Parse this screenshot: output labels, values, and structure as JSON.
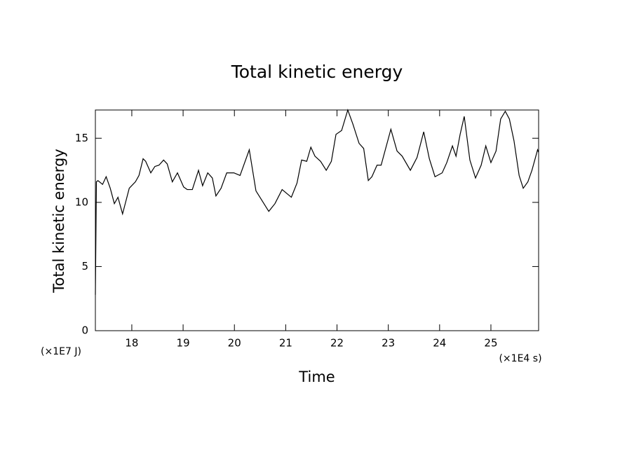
{
  "chart_data": {
    "type": "line",
    "title": "Total kinetic energy",
    "x_label": "Time",
    "y_label": "Total kinetic energy",
    "x_unit": "(×1E4 s)",
    "y_unit": "(×1E7 J)",
    "xlim": [
      17.29,
      25.93
    ],
    "ylim": [
      0,
      17.2
    ],
    "xticks": [
      18,
      19,
      20,
      21,
      22,
      23,
      24,
      25
    ],
    "yticks": [
      0,
      5,
      10,
      15
    ],
    "series": [
      {
        "name": "Total kinetic energy",
        "color": "#000000",
        "x": [
          17.29,
          17.31,
          17.34,
          17.43,
          17.5,
          17.58,
          17.66,
          17.73,
          17.82,
          17.95,
          18.07,
          18.14,
          18.22,
          18.27,
          18.37,
          18.45,
          18.53,
          18.62,
          18.69,
          18.79,
          18.89,
          19.01,
          19.08,
          19.18,
          19.3,
          19.38,
          19.48,
          19.57,
          19.64,
          19.74,
          19.85,
          19.99,
          20.11,
          20.29,
          20.42,
          20.56,
          20.67,
          20.79,
          20.93,
          21.11,
          21.22,
          21.31,
          21.41,
          21.49,
          21.57,
          21.68,
          21.79,
          21.89,
          21.98,
          22.09,
          22.21,
          22.31,
          22.43,
          22.52,
          22.61,
          22.68,
          22.78,
          22.86,
          23.05,
          23.17,
          23.27,
          23.43,
          23.56,
          23.69,
          23.8,
          23.91,
          24.05,
          24.14,
          24.25,
          24.32,
          24.4,
          24.48,
          24.59,
          24.7,
          24.81,
          24.9,
          25.0,
          25.1,
          25.19,
          25.28,
          25.36,
          25.45,
          25.55,
          25.63,
          25.72,
          25.8,
          25.91,
          25.93
        ],
        "values": [
          2.8,
          11.6,
          11.7,
          11.4,
          12.0,
          11.1,
          9.9,
          10.4,
          9.1,
          11.1,
          11.6,
          12.1,
          13.4,
          13.2,
          12.3,
          12.8,
          12.9,
          13.3,
          13.0,
          11.6,
          12.3,
          11.2,
          11.0,
          11.0,
          12.5,
          11.3,
          12.3,
          11.9,
          10.5,
          11.1,
          12.3,
          12.3,
          12.1,
          14.1,
          10.9,
          10.0,
          9.3,
          9.9,
          11.0,
          10.4,
          11.5,
          13.3,
          13.2,
          14.3,
          13.6,
          13.2,
          12.5,
          13.2,
          15.3,
          15.6,
          17.2,
          16.1,
          14.6,
          14.2,
          11.7,
          12.0,
          12.9,
          12.9,
          15.7,
          14.0,
          13.6,
          12.5,
          13.5,
          15.5,
          13.4,
          12.0,
          12.3,
          13.1,
          14.4,
          13.6,
          15.3,
          16.7,
          13.3,
          11.9,
          12.9,
          14.4,
          13.1,
          14.0,
          16.5,
          17.1,
          16.5,
          14.8,
          12.1,
          11.1,
          11.6,
          12.5,
          14.1,
          13.9
        ]
      }
    ]
  }
}
